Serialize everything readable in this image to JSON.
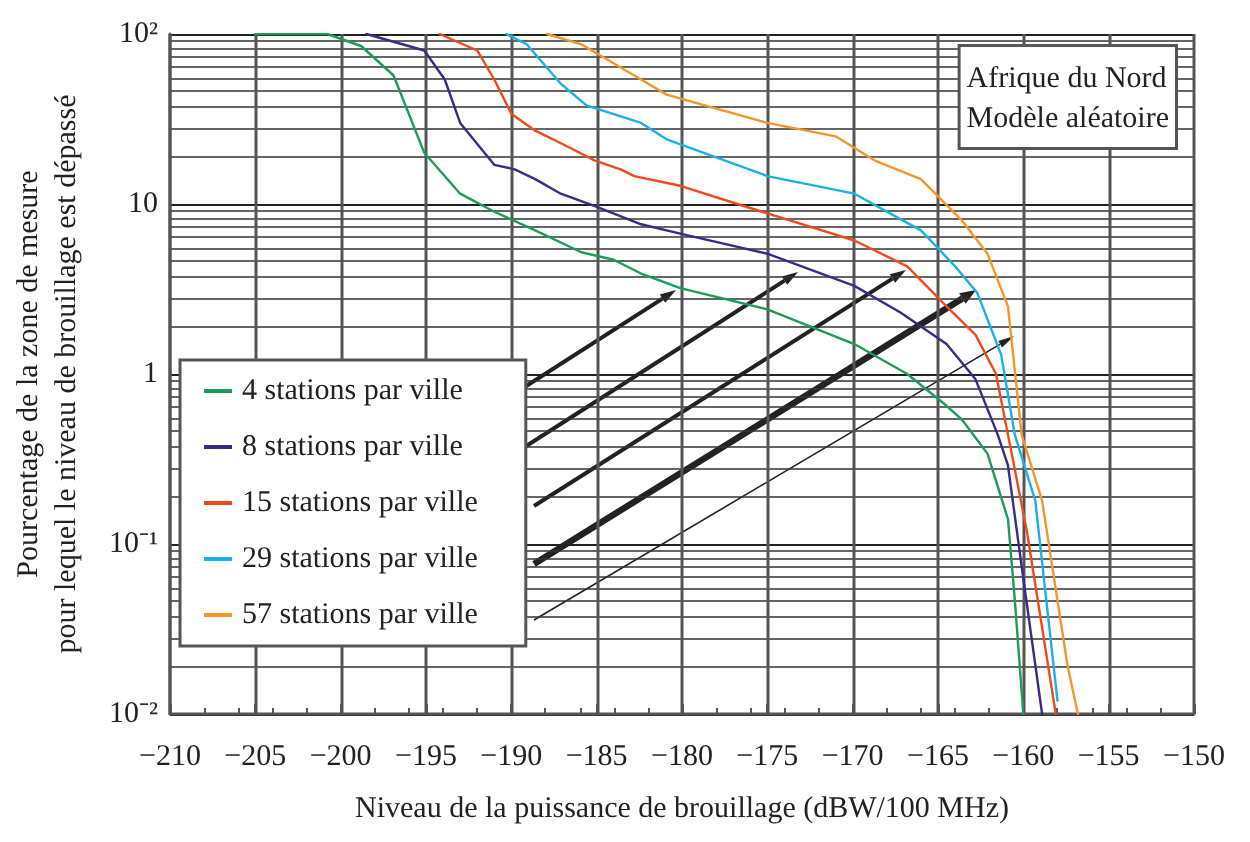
{
  "chart_data": {
    "type": "line",
    "xlabel": "Niveau de la puissance de brouillage (dBW/100 MHz)",
    "ylabel": "Pourcentage de la zone de mesure\npour lequel le niveau de brouillage est dépassé",
    "annotations": [
      "Afrique du Nord\nModèle aléatoire"
    ],
    "log": "y",
    "grid": true,
    "legend": "bottom left",
    "marker": "none",
    "line_style": "solid",
    "xlim": [
      -210,
      -150
    ],
    "xticks": [
      -210,
      -205,
      -200,
      -195,
      -190,
      -185,
      -180,
      -175,
      -170,
      -165,
      -160,
      -155,
      -150
    ],
    "ylim": [
      0.01,
      100
    ],
    "yticks": [
      {
        "value": 0.01,
        "label": "10⁻²"
      },
      {
        "value": 0.1,
        "label": "10⁻¹"
      },
      1,
      10,
      {
        "value": 100,
        "label": "10²"
      }
    ],
    "series": [
      {
        "name": "4 stations par ville",
        "color": "#1f9a5a",
        "x": [
          -205,
          -200.8,
          -198.8,
          -196.9,
          -195.1,
          -193,
          -191,
          -188.6,
          -185.9,
          -184,
          -182.4,
          -180.1,
          -175,
          -169.9,
          -166.8,
          -164.5,
          -163.6,
          -162.1,
          -160.9,
          -160.5,
          -160
        ],
        "values": [
          100,
          100,
          85,
          57,
          20,
          11.5,
          9,
          7,
          5.2,
          4.7,
          3.9,
          3.2,
          2.4,
          1.5,
          1,
          0.65,
          0.54,
          0.34,
          0.14,
          0.047,
          0.01
        ]
      },
      {
        "name": "8 stations par ville",
        "color": "#3a2a8a",
        "x": [
          -198.5,
          -195.1,
          -193.9,
          -193,
          -191,
          -189.8,
          -188.6,
          -187.1,
          -185.1,
          -182.4,
          -180.1,
          -175,
          -169.9,
          -167.2,
          -164.5,
          -162.8,
          -161.5,
          -160.9,
          -160.1,
          -158.9
        ],
        "values": [
          100,
          80,
          54,
          30,
          17,
          16,
          14,
          11.5,
          9.7,
          7.6,
          6.7,
          5.1,
          3.3,
          2.3,
          1.5,
          0.93,
          0.44,
          0.29,
          0.074,
          0.01
        ]
      },
      {
        "name": "15 stations par ville",
        "color": "#f04a1a",
        "x": [
          -194.2,
          -192,
          -191,
          -190,
          -188.6,
          -186.8,
          -185.1,
          -183.6,
          -182.8,
          -180.1,
          -175,
          -169.9,
          -166.8,
          -164.5,
          -162.8,
          -161.6,
          -160.9,
          -159.8,
          -158.1
        ],
        "values": [
          100,
          80,
          54,
          34,
          27,
          22,
          18,
          16,
          14.6,
          12.8,
          8.8,
          6.1,
          4.3,
          2.5,
          1.7,
          1,
          0.44,
          0.12,
          0.01
        ]
      },
      {
        "name": "29 stations par ville",
        "color": "#1ab0e8",
        "x": [
          -190.3,
          -189.1,
          -187.1,
          -185.6,
          -182.4,
          -180.9,
          -175,
          -169.9,
          -166,
          -164,
          -162.7,
          -161.3,
          -160.5,
          -159.3,
          -158
        ],
        "values": [
          100,
          87,
          51,
          38,
          30,
          24,
          14.6,
          11.5,
          7,
          4.3,
          3,
          1.3,
          0.44,
          0.18,
          0.012
        ]
      },
      {
        "name": "57 stations par ville",
        "color": "#f5962a",
        "x": [
          -187.9,
          -185.9,
          -182.4,
          -180.9,
          -175,
          -171,
          -168.7,
          -166,
          -163.6,
          -162.1,
          -160.9,
          -160.1,
          -158.9,
          -157.4,
          -156.8
        ],
        "values": [
          100,
          87,
          54,
          44,
          30,
          25,
          18,
          14,
          8,
          5.1,
          2.5,
          0.44,
          0.18,
          0.019,
          0.01
        ]
      }
    ]
  }
}
